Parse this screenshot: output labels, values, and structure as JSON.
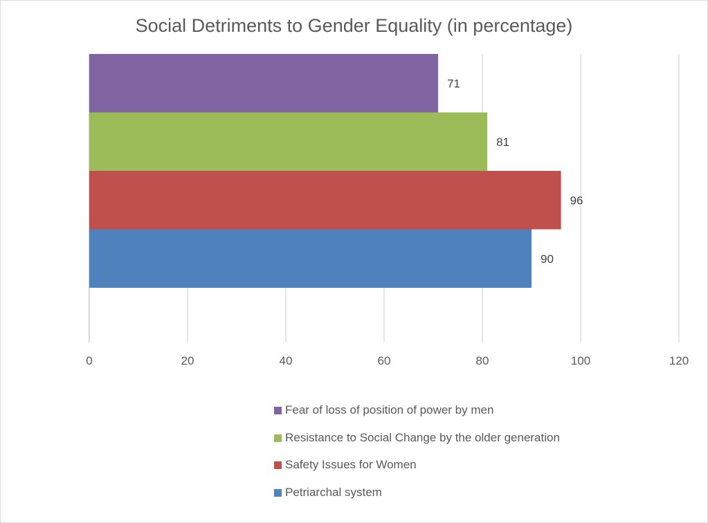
{
  "chart_data": {
    "type": "bar",
    "orientation": "horizontal",
    "title": "Social Detriments to Gender Equality (in percentage)",
    "xlabel": "",
    "ylabel": "",
    "xlim": [
      0,
      120
    ],
    "xticks": [
      "0",
      "20",
      "40",
      "60",
      "80",
      "100",
      "120"
    ],
    "grid": true,
    "legend_position": "bottom",
    "series": [
      {
        "name": "Fear of loss of position of power by men",
        "value": 71,
        "color": "#8064a2"
      },
      {
        "name": "Resistance to Social Change by the older generation",
        "value": 81,
        "color": "#9bbb59"
      },
      {
        "name": "Safety Issues for Women",
        "value": 96,
        "color": "#c0504d"
      },
      {
        "name": "Petriarchal system",
        "value": 90,
        "color": "#4f81bd"
      }
    ]
  }
}
